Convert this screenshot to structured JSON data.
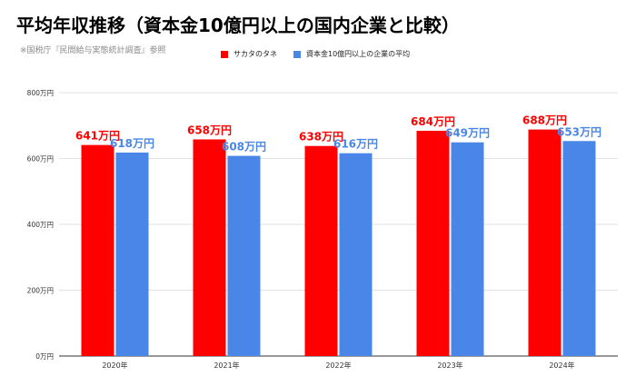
{
  "chart_data": {
    "type": "bar",
    "title": "平均年収推移（資本金10億円以上の国内企業と比較）",
    "subtitle": "※国税庁『民間給与実態統計調査』参照",
    "categories": [
      "2020年",
      "2021年",
      "2022年",
      "2023年",
      "2024年"
    ],
    "series": [
      {
        "name": "サカタのタネ",
        "color": "#ff0000",
        "values": [
          641,
          658,
          638,
          684,
          688
        ],
        "labels": [
          "641万円",
          "658万円",
          "638万円",
          "684万円",
          "688万円"
        ]
      },
      {
        "name": "資本金10億円以上の企業の平均",
        "color": "#4a86e8",
        "values": [
          618,
          608,
          616,
          649,
          653
        ],
        "labels": [
          "618万円",
          "608万円",
          "616万円",
          "649万円",
          "653万円"
        ]
      }
    ],
    "yticks": [
      0,
      200,
      400,
      600,
      800
    ],
    "ytick_labels": [
      "0万円",
      "200万円",
      "400万円",
      "600万円",
      "800万円"
    ],
    "ylim": [
      0,
      800
    ],
    "grid": true,
    "legend_position": "top"
  }
}
